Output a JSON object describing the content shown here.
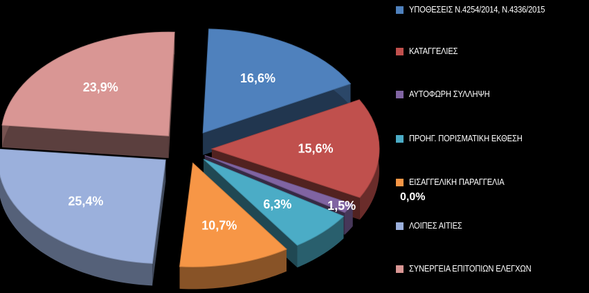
{
  "chart_data": {
    "type": "pie",
    "title": "",
    "legend_position": "right",
    "slices": [
      {
        "label": "ΥΠΟΘΕΣΕΙΣ Ν.4254/2014, Ν.4336/2015",
        "value": 16.6,
        "value_label": "16,6%",
        "color": "#4F81BD"
      },
      {
        "label": "ΚΑΤΑΓΓΕΛΙΕΣ",
        "value": 15.6,
        "value_label": "15,6%",
        "color": "#C0504D"
      },
      {
        "label": "ΑΥΤΟΦΩΡΗ ΣΥΛΛΗΨΗ",
        "value": 1.5,
        "value_label": "1,5%",
        "color": "#8064A2"
      },
      {
        "label": "ΠΡΟΗΓ. ΠΟΡΙΣΜΑΤΙΚΗ ΕΚΘΕΣΗ",
        "value": 6.3,
        "value_label": "6,3%",
        "color": "#4BACC6"
      },
      {
        "label": "ΕΙΣΑΓΓΕΛΙΚΗ ΠΑΡΑΓΓΕΛΙΑ",
        "value": 10.7,
        "value_label": "10,7%",
        "color": "#F79646"
      },
      {
        "label": "ΛΟΙΠΕΣ ΑΙΤΙΕΣ",
        "value": 25.4,
        "value_label": "25,4%",
        "color": "#9BB0DC"
      },
      {
        "label": "ΣΥΝΕΡΓΕΙΑ ΕΠΙΤΟΠΙΩΝ ΕΛΕΓΧΩΝ",
        "value": 23.9,
        "value_label": "23,9%",
        "color": "#D99694"
      }
    ],
    "extra_label": "0,0%"
  }
}
